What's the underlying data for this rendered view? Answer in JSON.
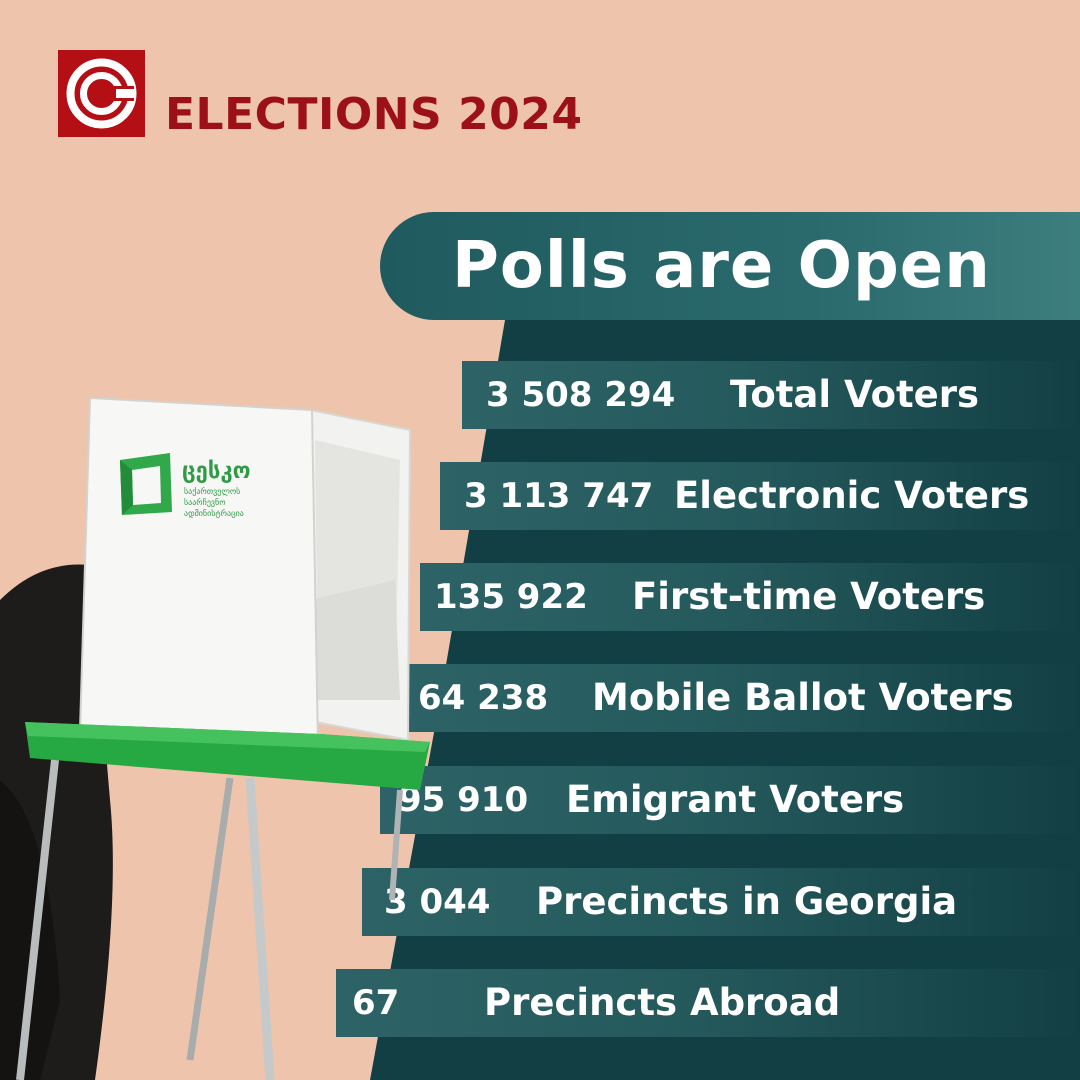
{
  "header": {
    "title": "ELECTIONS 2024",
    "logo_icon": "copyright-c-icon",
    "brand_color": "#b30f15"
  },
  "banner": {
    "heading": "Polls are Open"
  },
  "stats": [
    {
      "value": "3 508 294",
      "label": "Total Voters"
    },
    {
      "value": "3 113 747",
      "label": "Electronic Voters"
    },
    {
      "value": "135 922",
      "label": "First-time Voters"
    },
    {
      "value": "64 238",
      "label": "Mobile Ballot Voters"
    },
    {
      "value": "95 910",
      "label": "Emigrant Voters"
    },
    {
      "value": "3 044",
      "label": "Precincts in Georgia"
    },
    {
      "value": "67",
      "label": "Precincts Abroad"
    }
  ],
  "booth": {
    "brand_logo": "ცესკო",
    "brand_lines": [
      "საქართველოს",
      "საარჩევნო",
      "ადმინისტრაცია"
    ]
  },
  "colors": {
    "background": "#efc4ac",
    "panel": "#123f43",
    "accent_green": "#2bb24c",
    "text": "#ffffff"
  }
}
